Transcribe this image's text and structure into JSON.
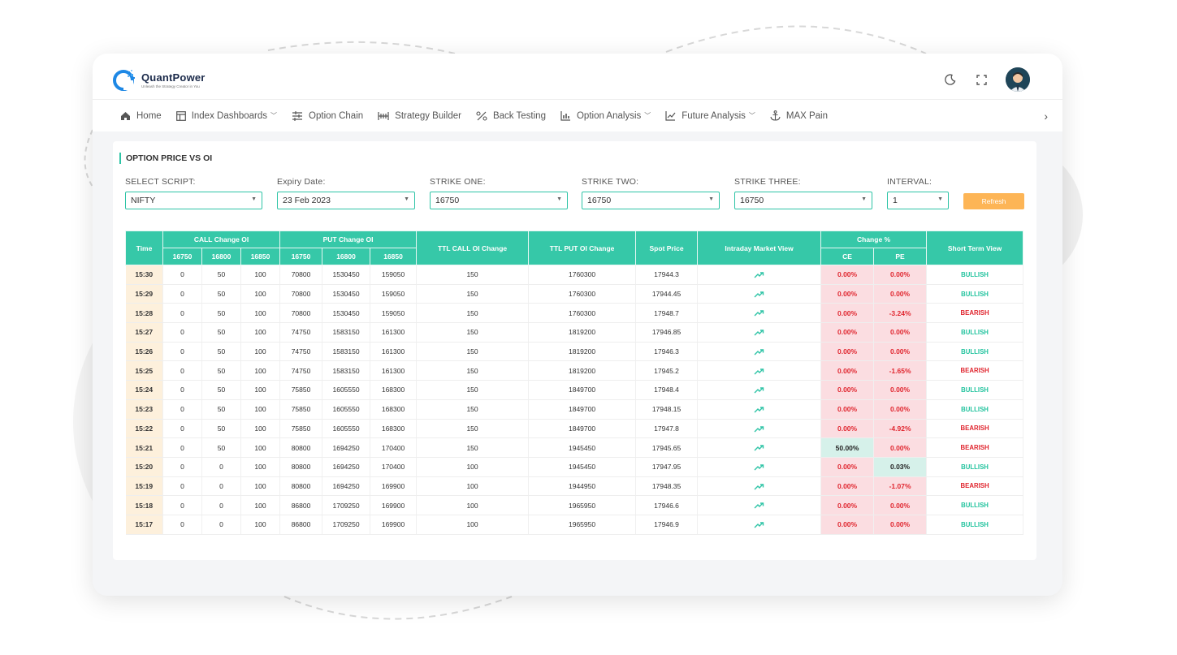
{
  "app": {
    "logo_name": "QuantPower",
    "logo_tagline": "Unleash the Strategy Creator in You",
    "brand_color": "#36c8a8"
  },
  "topbar": {
    "icons": [
      "moon-icon",
      "fullscreen-icon",
      "avatar"
    ]
  },
  "nav": {
    "items": [
      {
        "label": "Home",
        "icon": "home-icon",
        "dropdown": false
      },
      {
        "label": "Index Dashboards",
        "icon": "dashboard-icon",
        "dropdown": true
      },
      {
        "label": "Option Chain",
        "icon": "option-chain-icon",
        "dropdown": false
      },
      {
        "label": "Strategy Builder",
        "icon": "strategy-icon",
        "dropdown": false
      },
      {
        "label": "Back Testing",
        "icon": "backtest-icon",
        "dropdown": false
      },
      {
        "label": "Option Analysis",
        "icon": "bar-chart-icon",
        "dropdown": true
      },
      {
        "label": "Future Analysis",
        "icon": "line-chart-icon",
        "dropdown": true
      },
      {
        "label": "MAX Pain",
        "icon": "anchor-icon",
        "dropdown": false
      }
    ],
    "more": "›"
  },
  "panel": {
    "title": "OPTION PRICE VS OI",
    "filters": {
      "script": {
        "label": "SELECT SCRIPT:",
        "value": "NIFTY"
      },
      "expiry": {
        "label": "Expiry Date:",
        "value": "23 Feb 2023"
      },
      "strike_one": {
        "label": "STRIKE ONE:",
        "value": "16750"
      },
      "strike_two": {
        "label": "STRIKE TWO:",
        "value": "16750"
      },
      "strike_three": {
        "label": "STRIKE THREE:",
        "value": "16750"
      },
      "interval": {
        "label": "INTERVAL:",
        "value": "1"
      }
    },
    "refresh_label": "Refresh"
  },
  "table": {
    "headers": {
      "time": "Time",
      "call_change": "CALL Change OI",
      "put_change": "PUT Change OI",
      "ttl_call": "TTL CALL OI Change",
      "ttl_put": "TTL PUT OI Change",
      "spot": "Spot Price",
      "intraday": "Intraday Market View",
      "change_pct": "Change %",
      "short_term": "Short Term View",
      "ce": "CE",
      "pe": "PE",
      "strikes": [
        "16750",
        "16800",
        "16850"
      ]
    },
    "rows": [
      {
        "time": "15:30",
        "c1": "0",
        "c2": "50",
        "c3": "100",
        "p1": "70800",
        "p2": "1530450",
        "p3": "159050",
        "ttl_call": "150",
        "ttl_put": "1760300",
        "spot": "17944.3",
        "ce": "0.00%",
        "pe": "0.00%",
        "view": "BULLISH"
      },
      {
        "time": "15:29",
        "c1": "0",
        "c2": "50",
        "c3": "100",
        "p1": "70800",
        "p2": "1530450",
        "p3": "159050",
        "ttl_call": "150",
        "ttl_put": "1760300",
        "spot": "17944.45",
        "ce": "0.00%",
        "pe": "0.00%",
        "view": "BULLISH"
      },
      {
        "time": "15:28",
        "c1": "0",
        "c2": "50",
        "c3": "100",
        "p1": "70800",
        "p2": "1530450",
        "p3": "159050",
        "ttl_call": "150",
        "ttl_put": "1760300",
        "spot": "17948.7",
        "ce": "0.00%",
        "pe": "-3.24%",
        "view": "BEARISH"
      },
      {
        "time": "15:27",
        "c1": "0",
        "c2": "50",
        "c3": "100",
        "p1": "74750",
        "p2": "1583150",
        "p3": "161300",
        "ttl_call": "150",
        "ttl_put": "1819200",
        "spot": "17946.85",
        "ce": "0.00%",
        "pe": "0.00%",
        "view": "BULLISH"
      },
      {
        "time": "15:26",
        "c1": "0",
        "c2": "50",
        "c3": "100",
        "p1": "74750",
        "p2": "1583150",
        "p3": "161300",
        "ttl_call": "150",
        "ttl_put": "1819200",
        "spot": "17946.3",
        "ce": "0.00%",
        "pe": "0.00%",
        "view": "BULLISH"
      },
      {
        "time": "15:25",
        "c1": "0",
        "c2": "50",
        "c3": "100",
        "p1": "74750",
        "p2": "1583150",
        "p3": "161300",
        "ttl_call": "150",
        "ttl_put": "1819200",
        "spot": "17945.2",
        "ce": "0.00%",
        "pe": "-1.65%",
        "view": "BEARISH"
      },
      {
        "time": "15:24",
        "c1": "0",
        "c2": "50",
        "c3": "100",
        "p1": "75850",
        "p2": "1605550",
        "p3": "168300",
        "ttl_call": "150",
        "ttl_put": "1849700",
        "spot": "17948.4",
        "ce": "0.00%",
        "pe": "0.00%",
        "view": "BULLISH"
      },
      {
        "time": "15:23",
        "c1": "0",
        "c2": "50",
        "c3": "100",
        "p1": "75850",
        "p2": "1605550",
        "p3": "168300",
        "ttl_call": "150",
        "ttl_put": "1849700",
        "spot": "17948.15",
        "ce": "0.00%",
        "pe": "0.00%",
        "view": "BULLISH"
      },
      {
        "time": "15:22",
        "c1": "0",
        "c2": "50",
        "c3": "100",
        "p1": "75850",
        "p2": "1605550",
        "p3": "168300",
        "ttl_call": "150",
        "ttl_put": "1849700",
        "spot": "17947.8",
        "ce": "0.00%",
        "pe": "-4.92%",
        "view": "BEARISH"
      },
      {
        "time": "15:21",
        "c1": "0",
        "c2": "50",
        "c3": "100",
        "p1": "80800",
        "p2": "1694250",
        "p3": "170400",
        "ttl_call": "150",
        "ttl_put": "1945450",
        "spot": "17945.65",
        "ce": "50.00%",
        "pe": "0.00%",
        "view": "BEARISH"
      },
      {
        "time": "15:20",
        "c1": "0",
        "c2": "0",
        "c3": "100",
        "p1": "80800",
        "p2": "1694250",
        "p3": "170400",
        "ttl_call": "100",
        "ttl_put": "1945450",
        "spot": "17947.95",
        "ce": "0.00%",
        "pe": "0.03%",
        "view": "BULLISH"
      },
      {
        "time": "15:19",
        "c1": "0",
        "c2": "0",
        "c3": "100",
        "p1": "80800",
        "p2": "1694250",
        "p3": "169900",
        "ttl_call": "100",
        "ttl_put": "1944950",
        "spot": "17948.35",
        "ce": "0.00%",
        "pe": "-1.07%",
        "view": "BEARISH"
      },
      {
        "time": "15:18",
        "c1": "0",
        "c2": "0",
        "c3": "100",
        "p1": "86800",
        "p2": "1709250",
        "p3": "169900",
        "ttl_call": "100",
        "ttl_put": "1965950",
        "spot": "17946.6",
        "ce": "0.00%",
        "pe": "0.00%",
        "view": "BULLISH"
      },
      {
        "time": "15:17",
        "c1": "0",
        "c2": "0",
        "c3": "100",
        "p1": "86800",
        "p2": "1709250",
        "p3": "169900",
        "ttl_call": "100",
        "ttl_put": "1965950",
        "spot": "17946.9",
        "ce": "0.00%",
        "pe": "0.00%",
        "view": "BULLISH"
      }
    ]
  }
}
